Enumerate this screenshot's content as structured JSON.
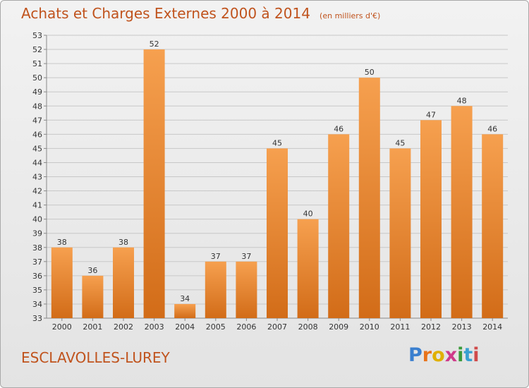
{
  "title": "Achats et Charges Externes 2000 à 2014",
  "subtitle": "(en milliers d'€)",
  "location": "ESCLAVOLLES-LUREY",
  "logo": {
    "text": "Proxiti",
    "letter_colors": [
      "#3a7fcf",
      "#e8731a",
      "#e0b000",
      "#cf3a8a",
      "#3a9a3a",
      "#3aa0d0",
      "#d04a4a"
    ]
  },
  "colors": {
    "bar_light": "#f6a04f",
    "bar_dark": "#d26c18",
    "title": "#c0531d",
    "grid": "#c8c8c8"
  },
  "chart_data": {
    "type": "bar",
    "categories": [
      "2000",
      "2001",
      "2002",
      "2003",
      "2004",
      "2005",
      "2006",
      "2007",
      "2008",
      "2009",
      "2010",
      "2011",
      "2012",
      "2013",
      "2014"
    ],
    "values": [
      38,
      36,
      38,
      52,
      34,
      37,
      37,
      45,
      40,
      46,
      50,
      45,
      47,
      48,
      46
    ],
    "ylim": [
      33,
      53
    ],
    "yticks": [
      33,
      34,
      35,
      36,
      37,
      38,
      39,
      40,
      41,
      42,
      43,
      44,
      45,
      46,
      47,
      48,
      49,
      50,
      51,
      52,
      53
    ],
    "grid": true,
    "xlabel": "",
    "ylabel": ""
  }
}
